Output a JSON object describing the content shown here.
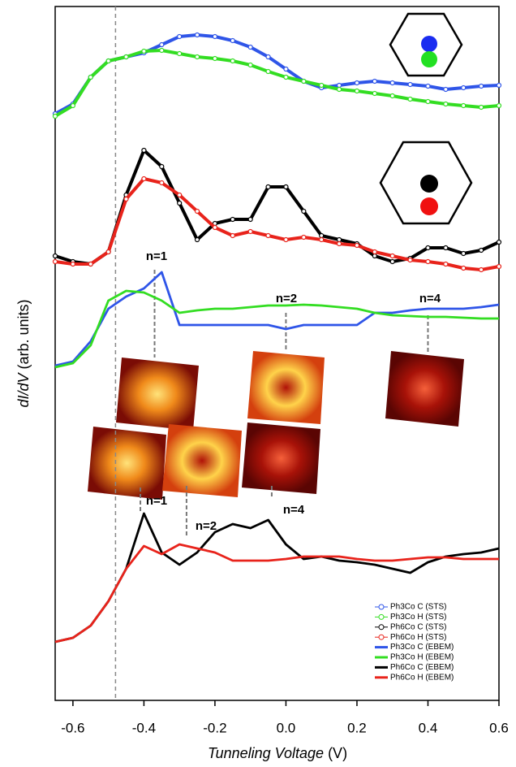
{
  "chart_data": {
    "type": "line",
    "xlabel": {
      "main": "Tunneling Voltage",
      "unit": "(V)"
    },
    "ylabel": {
      "main": "dI/dV",
      "unit": "(arb. units)"
    },
    "xlim": [
      -0.65,
      0.6
    ],
    "ylim": [
      0,
      854
    ],
    "xticks": [
      -0.6,
      -0.4,
      -0.2,
      {
        "value": 0,
        "label": "0.0"
      },
      0.2,
      0.4,
      0.6
    ],
    "vline": -0.48,
    "x": [
      -0.65,
      -0.6,
      -0.55,
      -0.5,
      -0.45,
      -0.4,
      -0.35,
      -0.3,
      -0.25,
      -0.2,
      -0.15,
      -0.1,
      -0.05,
      0,
      0.05,
      0.1,
      0.15,
      0.2,
      0.25,
      0.3,
      0.35,
      0.4,
      0.45,
      0.5,
      0.55,
      0.6
    ],
    "series": [
      {
        "name": "Ph3Co C (STS)",
        "color": "#2f55e8",
        "marker": true,
        "values": [
          722,
          734,
          767,
          787,
          792,
          797,
          807,
          817,
          819,
          817,
          812,
          804,
          792,
          777,
          762,
          754,
          757,
          760,
          762,
          760,
          758,
          756,
          752,
          754,
          756,
          757
        ]
      },
      {
        "name": "Ph3Co H (STS)",
        "color": "#33dd22",
        "marker": true,
        "values": [
          719,
          732,
          767,
          787,
          792,
          799,
          800,
          796,
          792,
          790,
          787,
          782,
          774,
          767,
          762,
          757,
          752,
          750,
          747,
          744,
          740,
          737,
          734,
          732,
          730,
          732
        ]
      },
      {
        "name": "Ph6Co C (STS)",
        "color": "#000000",
        "marker": true,
        "values": [
          547,
          540,
          537,
          552,
          622,
          677,
          657,
          612,
          567,
          587,
          592,
          592,
          632,
          632,
          602,
          572,
          567,
          562,
          547,
          540,
          544,
          557,
          557,
          550,
          554,
          564
        ]
      },
      {
        "name": "Ph6Co H (STS)",
        "color": "#e8231b",
        "marker": true,
        "values": [
          540,
          537,
          537,
          552,
          617,
          642,
          637,
          622,
          602,
          582,
          572,
          577,
          572,
          567,
          570,
          567,
          562,
          560,
          552,
          547,
          542,
          540,
          537,
          532,
          530,
          534
        ]
      },
      {
        "name": "Ph3Co C (EBEM)",
        "color": "#2f55e8",
        "marker": false,
        "values": [
          412,
          417,
          442,
          482,
          497,
          507,
          527,
          462,
          462,
          462,
          462,
          462,
          462,
          457,
          462,
          462,
          462,
          462,
          477,
          477,
          480,
          482,
          482,
          482,
          484,
          487
        ]
      },
      {
        "name": "Ph3Co H (EBEM)",
        "color": "#33dd22",
        "marker": false,
        "values": [
          410,
          415,
          437,
          492,
          504,
          502,
          492,
          477,
          480,
          482,
          482,
          484,
          486,
          486,
          487,
          486,
          484,
          482,
          477,
          474,
          473,
          472,
          472,
          471,
          470,
          470
        ]
      },
      {
        "name": "Ph6Co C (EBEM)",
        "color": "#000000",
        "marker": false,
        "values": [
          72,
          77,
          92,
          122,
          162,
          230,
          182,
          167,
          182,
          207,
          217,
          212,
          222,
          192,
          174,
          177,
          172,
          170,
          167,
          162,
          157,
          170,
          177,
          180,
          182,
          187
        ]
      },
      {
        "name": "Ph6Co H (EBEM)",
        "color": "#e8231b",
        "marker": false,
        "values": [
          72,
          77,
          92,
          122,
          162,
          190,
          180,
          192,
          187,
          182,
          172,
          172,
          172,
          174,
          177,
          177,
          177,
          174,
          172,
          172,
          174,
          176,
          176,
          174,
          174,
          174
        ]
      }
    ],
    "annotations": [
      {
        "text": "n=1",
        "x": -0.37
      },
      {
        "text": "n=2",
        "x": 0
      },
      {
        "text": "n=4",
        "x": 0.4
      },
      {
        "text": "n=1",
        "x": -0.41
      },
      {
        "text": "n=2",
        "x": -0.28
      },
      {
        "text": "n=4",
        "x": -0.04
      }
    ]
  }
}
